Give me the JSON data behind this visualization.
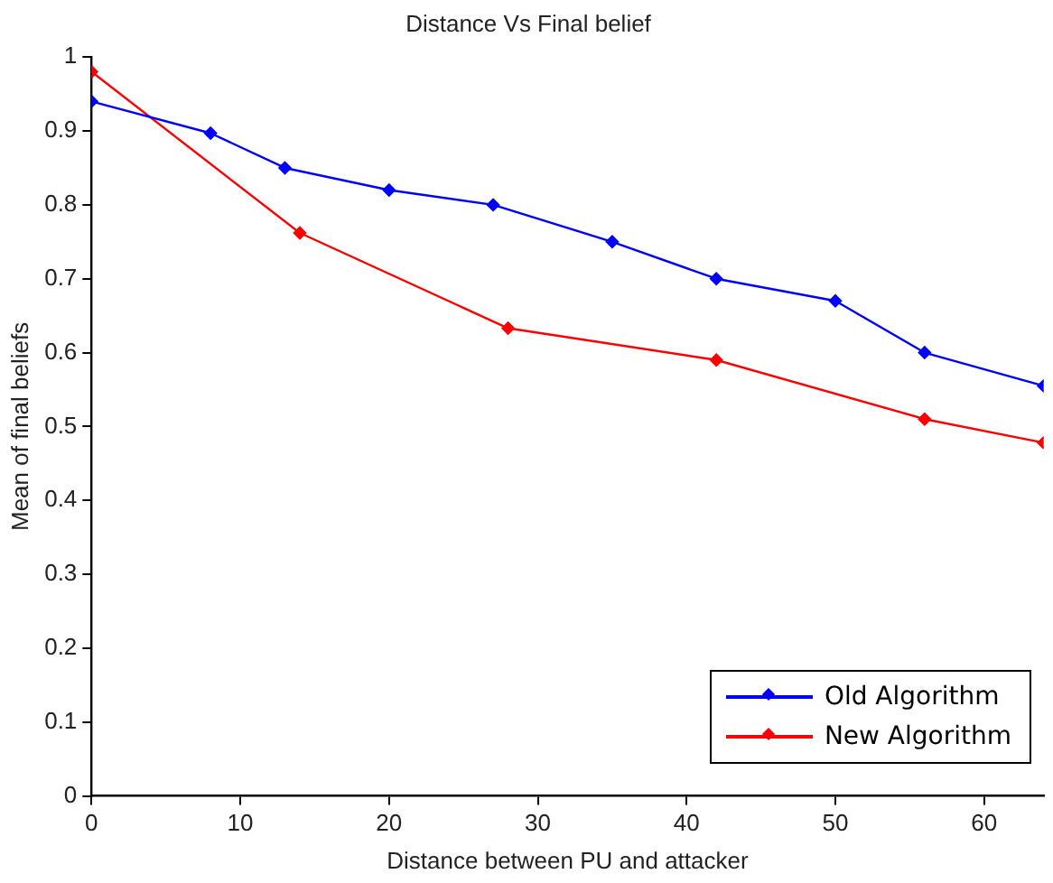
{
  "chart_data": {
    "type": "line",
    "title": "Distance Vs Final belief",
    "xlabel": "Distance between PU and attacker",
    "ylabel": "Mean of final beliefs",
    "xlim": [
      0,
      64
    ],
    "xticks": [
      0,
      10,
      20,
      30,
      40,
      50,
      60
    ],
    "ylim": [
      0,
      1
    ],
    "yticks": [
      0,
      0.1,
      0.2,
      0.3,
      0.4,
      0.5,
      0.6,
      0.7,
      0.8,
      0.9,
      1
    ],
    "grid": false,
    "legend": "bottom right",
    "marker": "diamond",
    "line_style": "solid",
    "series": [
      {
        "name": "Old Algorithm",
        "color": "#0000ff",
        "x": [
          0,
          8,
          13,
          20,
          27,
          35,
          42,
          50,
          56,
          64
        ],
        "values": [
          0.94,
          0.897,
          0.85,
          0.82,
          0.8,
          0.75,
          0.7,
          0.67,
          0.6,
          0.555
        ]
      },
      {
        "name": "New Algorithm",
        "color": "#ff0000",
        "x": [
          0,
          14,
          28,
          42,
          56,
          64
        ],
        "values": [
          0.98,
          0.762,
          0.633,
          0.59,
          0.51,
          0.478
        ]
      }
    ]
  }
}
